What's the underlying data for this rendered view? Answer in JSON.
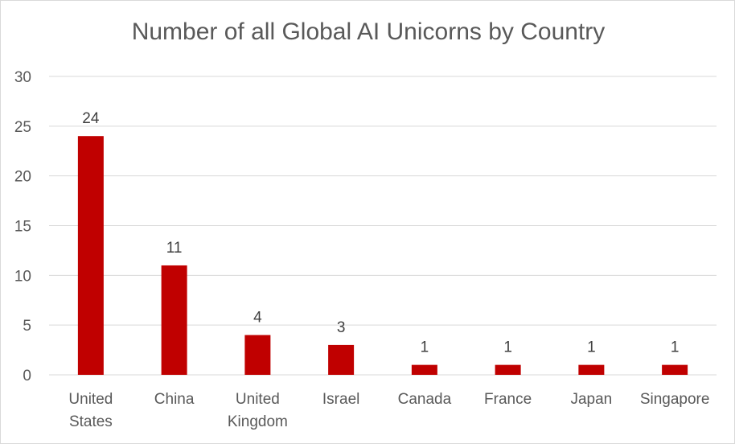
{
  "chart_data": {
    "type": "bar",
    "title": "Number of all Global AI Unicorns by Country",
    "xlabel": "",
    "ylabel": "",
    "categories": [
      [
        "United",
        "States"
      ],
      [
        "China"
      ],
      [
        "United",
        "Kingdom"
      ],
      [
        "Israel"
      ],
      [
        "Canada"
      ],
      [
        "France"
      ],
      [
        "Japan"
      ],
      [
        "Singapore"
      ]
    ],
    "values": [
      24,
      11,
      4,
      3,
      1,
      1,
      1,
      1
    ],
    "data_labels": [
      "24",
      "11",
      "4",
      "3",
      "1",
      "1",
      "1",
      "1"
    ],
    "ylim": [
      0,
      30
    ],
    "yticks": [
      "0",
      "5",
      "10",
      "15",
      "20",
      "25",
      "30"
    ],
    "grid": true,
    "legend": "none",
    "colors": {
      "bar": "#c00000",
      "grid": "#d9d9d9",
      "axis_text": "#595959"
    }
  }
}
